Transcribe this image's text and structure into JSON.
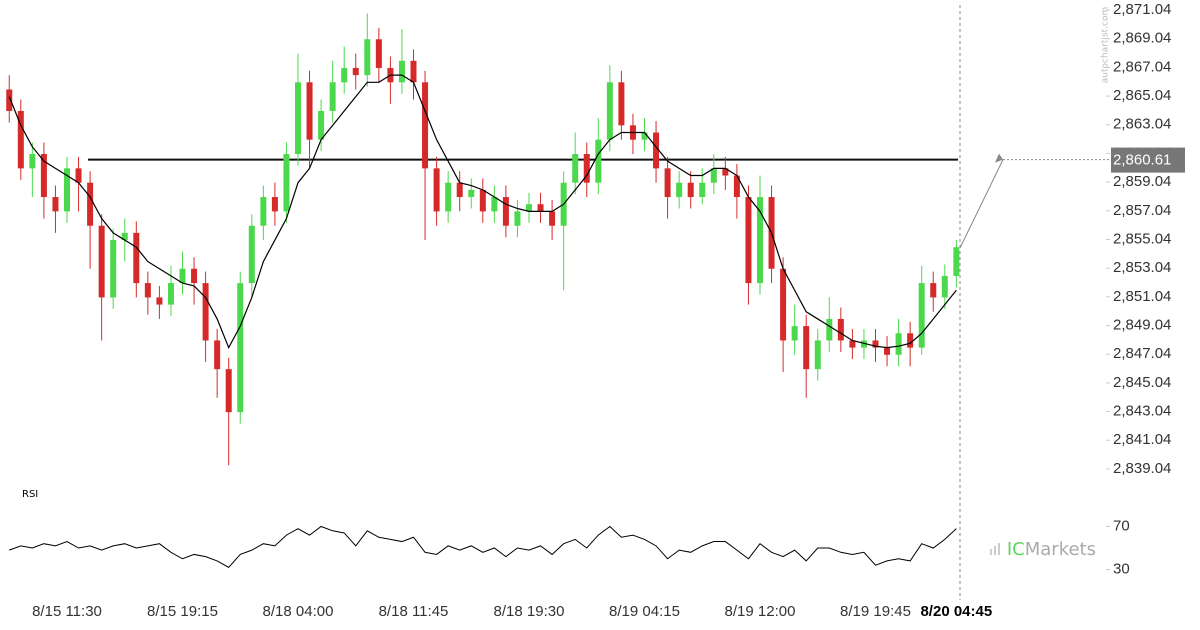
{
  "chart_data": [
    {
      "type": "candlestick",
      "categories": [
        null,
        null,
        null,
        null,
        null,
        "8/15 11:30",
        null,
        null,
        null,
        null,
        null,
        null,
        null,
        null,
        null,
        "8/15 19:15",
        null,
        null,
        null,
        null,
        null,
        null,
        null,
        null,
        null,
        "8/18 04:00",
        null,
        null,
        null,
        null,
        null,
        null,
        null,
        null,
        null,
        "8/18 11:45",
        null,
        null,
        null,
        null,
        null,
        null,
        null,
        null,
        null,
        "8/18 19:30",
        null,
        null,
        null,
        null,
        null,
        null,
        null,
        null,
        null,
        "8/19 04:15",
        null,
        null,
        null,
        null,
        null,
        null,
        null,
        null,
        null,
        "8/19 12:00",
        null,
        null,
        null,
        null,
        null,
        null,
        null,
        null,
        null,
        "8/19 19:45",
        null,
        null,
        null,
        null,
        null,
        null,
        "8/20 04:45"
      ],
      "open": [
        2865.5,
        2864,
        2860,
        2861,
        2858,
        2857,
        2860,
        2859,
        2856,
        2851,
        2855,
        2855.5,
        2852,
        2851,
        2850.5,
        2852,
        2853,
        2852,
        2848,
        2846,
        2843,
        2852,
        2856,
        2858,
        2857,
        2861,
        2866,
        2862,
        2864,
        2866,
        2867,
        2866.5,
        2869,
        2867,
        2866,
        2867.5,
        2866,
        2860,
        2857,
        2859,
        2858,
        2858.5,
        2857,
        2858,
        2856,
        2857,
        2857.5,
        2857,
        2856,
        2859,
        2861,
        2859,
        2862,
        2866,
        2863,
        2862,
        2862.5,
        2860,
        2858,
        2859,
        2858,
        2859,
        2860,
        2859.5,
        2858,
        2852,
        2858,
        2853,
        2848,
        2849,
        2846,
        2848,
        2849.5,
        2848,
        2847.5,
        2848,
        2847.5,
        2847,
        2848.5,
        2847.5,
        2852,
        2851,
        2852.5
      ],
      "high": [
        2866.5,
        2864.8,
        2861.8,
        2861.8,
        2858.8,
        2860.8,
        2860.8,
        2859.8,
        2856.8,
        2855.8,
        2856.5,
        2856.3,
        2852.8,
        2851.8,
        2853.2,
        2854.2,
        2853.8,
        2852.8,
        2848.8,
        2846.8,
        2852.8,
        2856.8,
        2858.8,
        2859,
        2861.8,
        2868,
        2866.8,
        2864.8,
        2867.5,
        2868.5,
        2868,
        2870.8,
        2869.8,
        2867.8,
        2869.7,
        2868.3,
        2866.8,
        2860.8,
        2859.8,
        2859.8,
        2859.3,
        2859.3,
        2858.8,
        2858.8,
        2857.8,
        2858.3,
        2858.3,
        2857.8,
        2859.8,
        2862.5,
        2861.8,
        2863.5,
        2867.2,
        2866.8,
        2863.8,
        2863.5,
        2863.3,
        2860.8,
        2859.8,
        2859.8,
        2860,
        2861,
        2860.8,
        2860.3,
        2858.8,
        2859.5,
        2858.8,
        2853.8,
        2850.5,
        2849.8,
        2848.8,
        2851,
        2850.3,
        2848.8,
        2848.8,
        2848.8,
        2848.3,
        2849.5,
        2849.3,
        2853.2,
        2852.8,
        2853.3,
        2855
      ],
      "low": [
        2863.2,
        2859.2,
        2858,
        2856.5,
        2855.5,
        2856.2,
        2857,
        2853,
        2848,
        2850.2,
        2853.5,
        2851,
        2849.8,
        2849.5,
        2849.7,
        2851.2,
        2850.5,
        2846.5,
        2844,
        2839.3,
        2842.2,
        2851,
        2855,
        2856,
        2856.2,
        2860.2,
        2860,
        2861.2,
        2863.2,
        2865.2,
        2865.5,
        2865.7,
        2866,
        2864.5,
        2865.2,
        2864.8,
        2855,
        2856,
        2856.2,
        2857,
        2857.2,
        2856.2,
        2856.2,
        2855.2,
        2855.2,
        2856.2,
        2856.2,
        2855,
        2851.5,
        2858.2,
        2858,
        2858.2,
        2861.2,
        2862,
        2861,
        2861.2,
        2859,
        2856.5,
        2857.2,
        2857.2,
        2857.5,
        2858.2,
        2858.5,
        2856.5,
        2850.5,
        2851.2,
        2852,
        2845.8,
        2847,
        2844,
        2845.2,
        2847.2,
        2847.2,
        2846.7,
        2846.7,
        2846.5,
        2846.2,
        2846.2,
        2846.2,
        2847,
        2850,
        2850.2,
        2851.7
      ],
      "close": [
        2864,
        2860,
        2861,
        2858,
        2857,
        2860,
        2859,
        2856,
        2851,
        2855,
        2855.5,
        2852,
        2851,
        2850.5,
        2852,
        2853,
        2852,
        2848,
        2846,
        2843,
        2852,
        2856,
        2858,
        2857,
        2861,
        2866,
        2862,
        2864,
        2866,
        2867,
        2866.5,
        2869,
        2867,
        2866,
        2867.5,
        2866,
        2860,
        2857,
        2859,
        2858,
        2858.5,
        2857,
        2858,
        2856,
        2857,
        2857.5,
        2857,
        2856,
        2859,
        2861,
        2859,
        2862,
        2866,
        2863,
        2862,
        2862.5,
        2860,
        2858,
        2859,
        2858,
        2859,
        2860,
        2859.5,
        2858,
        2852,
        2858,
        2853,
        2848,
        2849,
        2846,
        2848,
        2849.5,
        2848,
        2847.5,
        2848,
        2847.5,
        2847,
        2848.5,
        2847.5,
        2852,
        2851,
        2852.5,
        2854.5
      ],
      "ma": [
        2865,
        2863,
        2861.5,
        2860.5,
        2860,
        2859.5,
        2859,
        2858,
        2856.5,
        2855.5,
        2855,
        2854.5,
        2853.5,
        2853,
        2852.5,
        2852,
        2851.8,
        2851,
        2849.5,
        2847.5,
        2849,
        2851,
        2853.5,
        2855,
        2856.5,
        2859,
        2860,
        2862,
        2863,
        2864,
        2865,
        2866,
        2866,
        2866.5,
        2866.5,
        2866,
        2864,
        2862,
        2860.5,
        2859,
        2858.8,
        2858.5,
        2858,
        2857.5,
        2857.2,
        2857,
        2857,
        2857,
        2857.5,
        2858.5,
        2859.5,
        2861,
        2862,
        2862.5,
        2862.5,
        2862.5,
        2861.5,
        2860.5,
        2860,
        2859.5,
        2859.5,
        2860,
        2860,
        2859.5,
        2858,
        2857,
        2855.5,
        2853,
        2851.5,
        2850,
        2849.5,
        2849,
        2848.5,
        2848,
        2847.8,
        2847.6,
        2847.5,
        2847.6,
        2847.8,
        2848.5,
        2849.5,
        2850.5,
        2851.5
      ],
      "up_color": "#4cd84c",
      "down_color": "#d62a2a",
      "ma_color": "#000000",
      "ylim": [
        2838.27,
        2871.39
      ],
      "yticks": [
        {
          "value": 2871.04,
          "label": "2,871.04"
        },
        {
          "value": 2869.04,
          "label": "2,869.04"
        },
        {
          "value": 2867.04,
          "label": "2,867.04"
        },
        {
          "value": 2865.04,
          "label": "2,865.04"
        },
        {
          "value": 2863.04,
          "label": "2,863.04"
        },
        {
          "value": 2861.04,
          "label": "2,861.04"
        },
        {
          "value": 2859.04,
          "label": "2,859.04"
        },
        {
          "value": 2857.04,
          "label": "2,857.04"
        },
        {
          "value": 2855.04,
          "label": "2,855.04"
        },
        {
          "value": 2853.04,
          "label": "2,853.04"
        },
        {
          "value": 2851.04,
          "label": "2,851.04"
        },
        {
          "value": 2849.04,
          "label": "2,849.04"
        },
        {
          "value": 2847.04,
          "label": "2,847.04"
        },
        {
          "value": 2845.04,
          "label": "2,845.04"
        },
        {
          "value": 2843.04,
          "label": "2,843.04"
        },
        {
          "value": 2841.04,
          "label": "2,841.04"
        },
        {
          "value": 2839.04,
          "label": "2,839.04"
        }
      ],
      "level": {
        "value": 2860.61,
        "label": "2,860.61"
      }
    },
    {
      "type": "line",
      "title": "RSI",
      "values": [
        48,
        52,
        50,
        54,
        52,
        56,
        50,
        52,
        48,
        52,
        54,
        50,
        52,
        54,
        46,
        40,
        44,
        42,
        38,
        32,
        44,
        48,
        54,
        52,
        62,
        68,
        62,
        70,
        66,
        64,
        52,
        66,
        60,
        58,
        56,
        60,
        46,
        44,
        52,
        48,
        52,
        46,
        50,
        42,
        50,
        48,
        52,
        44,
        54,
        58,
        50,
        62,
        70,
        60,
        62,
        58,
        52,
        40,
        48,
        46,
        52,
        56,
        56,
        48,
        40,
        54,
        46,
        42,
        48,
        38,
        50,
        50,
        46,
        44,
        46,
        34,
        38,
        40,
        38,
        54,
        50,
        58,
        68
      ],
      "color": "#000000",
      "ylim": [
        22,
        78
      ],
      "yticks": [
        70,
        30
      ]
    }
  ],
  "watermark": {
    "prefix": "IC",
    "suffix": "Markets"
  },
  "credit": "autochartist.com"
}
